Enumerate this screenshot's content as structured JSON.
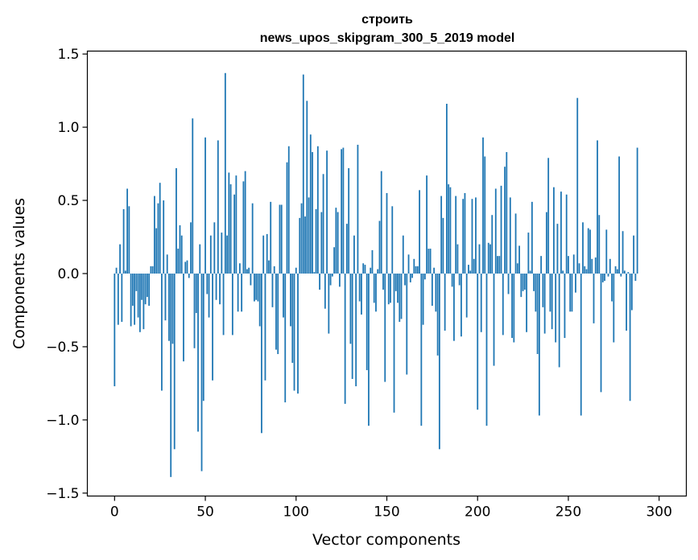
{
  "chart_data": {
    "type": "bar",
    "title": [
      "строить",
      "news_upos_skipgram_300_5_2019 model"
    ],
    "xlabel": "Vector components",
    "ylabel": "Components values",
    "xlim": [
      -15,
      315
    ],
    "ylim": [
      -1.52,
      1.52
    ],
    "xticks": [
      0,
      50,
      100,
      150,
      200,
      250,
      300
    ],
    "yticks": [
      1.5,
      1.0,
      0.5,
      0.0,
      -0.5,
      -1.0,
      -1.5
    ],
    "ytick_labels": [
      "1.5",
      "1.0",
      "0.5",
      "0.0",
      "−0.5",
      "−1.0",
      "−1.5"
    ],
    "bar_color": "#1f77b4",
    "grid": false,
    "values": [
      -0.77,
      0.04,
      -0.35,
      0.2,
      -0.33,
      0.44,
      0.02,
      0.58,
      0.46,
      -0.36,
      -0.22,
      -0.35,
      -0.12,
      -0.3,
      -0.4,
      -0.18,
      -0.38,
      -0.21,
      -0.16,
      -0.22,
      0.05,
      0.05,
      0.53,
      0.31,
      0.48,
      0.62,
      -0.8,
      0.5,
      -0.32,
      0.13,
      -0.46,
      -1.39,
      -0.48,
      -1.2,
      0.72,
      0.17,
      0.33,
      0.26,
      -0.6,
      0.08,
      0.09,
      -0.03,
      0.35,
      1.06,
      -0.51,
      -0.27,
      -1.08,
      0.2,
      -1.35,
      -0.87,
      0.93,
      -0.14,
      -0.3,
      0.26,
      -0.73,
      0.35,
      -0.18,
      0.91,
      -0.21,
      0.28,
      -0.42,
      1.37,
      0.26,
      0.69,
      0.61,
      -0.42,
      0.54,
      0.67,
      -0.26,
      0.07,
      -0.26,
      0.63,
      0.7,
      0.03,
      0.04,
      -0.08,
      0.48,
      -0.19,
      -0.18,
      -0.19,
      -0.36,
      -1.09,
      0.26,
      -0.73,
      0.27,
      0.09,
      0.49,
      -0.23,
      0.05,
      -0.52,
      -0.55,
      0.47,
      0.47,
      -0.3,
      -0.88,
      0.76,
      0.87,
      -0.36,
      -0.61,
      -0.8,
      0.04,
      -0.82,
      0.38,
      0.48,
      1.36,
      0.39,
      1.18,
      0.52,
      0.95,
      0.83,
      0.01,
      0.44,
      0.87,
      -0.11,
      0.42,
      0.68,
      -0.24,
      0.84,
      -0.41,
      -0.08,
      -0.02,
      0.18,
      0.45,
      0.42,
      -0.09,
      0.85,
      0.86,
      -0.89,
      0.34,
      0.72,
      -0.48,
      -0.72,
      0.26,
      -0.77,
      0.88,
      -0.19,
      -0.28,
      0.07,
      0.06,
      -0.66,
      -1.04,
      0.04,
      0.16,
      -0.2,
      -0.26,
      0.03,
      0.36,
      0.7,
      -0.11,
      -0.74,
      0.55,
      -0.21,
      -0.2,
      0.46,
      -0.95,
      -0.12,
      -0.2,
      -0.33,
      -0.31,
      0.26,
      -0.08,
      -0.69,
      0.13,
      -0.06,
      -0.03,
      0.1,
      0.05,
      0.05,
      0.57,
      -1.04,
      -0.35,
      -0.04,
      0.67,
      0.17,
      0.17,
      -0.22,
      0.04,
      -0.26,
      -0.56,
      -1.2,
      0.53,
      0.38,
      -0.39,
      1.16,
      0.61,
      0.59,
      -0.09,
      -0.46,
      0.53,
      0.2,
      -0.08,
      -0.43,
      0.51,
      0.55,
      -0.3,
      0.06,
      0.02,
      0.51,
      0.1,
      0.52,
      -0.93,
      0.2,
      -0.4,
      0.93,
      0.8,
      -1.04,
      0.21,
      0.2,
      0.4,
      -0.63,
      0.58,
      0.12,
      0.12,
      0.6,
      -0.42,
      0.73,
      0.83,
      -0.14,
      0.52,
      -0.44,
      -0.47,
      0.41,
      0.07,
      0.19,
      -0.16,
      -0.12,
      -0.11,
      -0.4,
      0.28,
      0.02,
      0.49,
      -0.12,
      -0.26,
      -0.55,
      -0.97,
      0.12,
      -0.23,
      -0.41,
      0.42,
      0.79,
      -0.26,
      -0.38,
      0.59,
      -0.47,
      0.34,
      -0.64,
      0.56,
      0.02,
      -0.44,
      0.54,
      0.12,
      -0.26,
      -0.26,
      0.13,
      -0.13,
      1.2,
      0.07,
      -0.97,
      0.35,
      0.05,
      0.03,
      0.31,
      0.3,
      0.1,
      -0.34,
      0.11,
      0.91,
      0.4,
      -0.81,
      -0.06,
      -0.05,
      0.3,
      -0.02,
      0.1,
      -0.19,
      -0.47,
      0.05,
      0.03,
      0.8,
      -0.02,
      0.29,
      0.02,
      -0.39,
      0.01,
      -0.87,
      -0.25,
      0.26,
      -0.05,
      0.86
    ]
  }
}
